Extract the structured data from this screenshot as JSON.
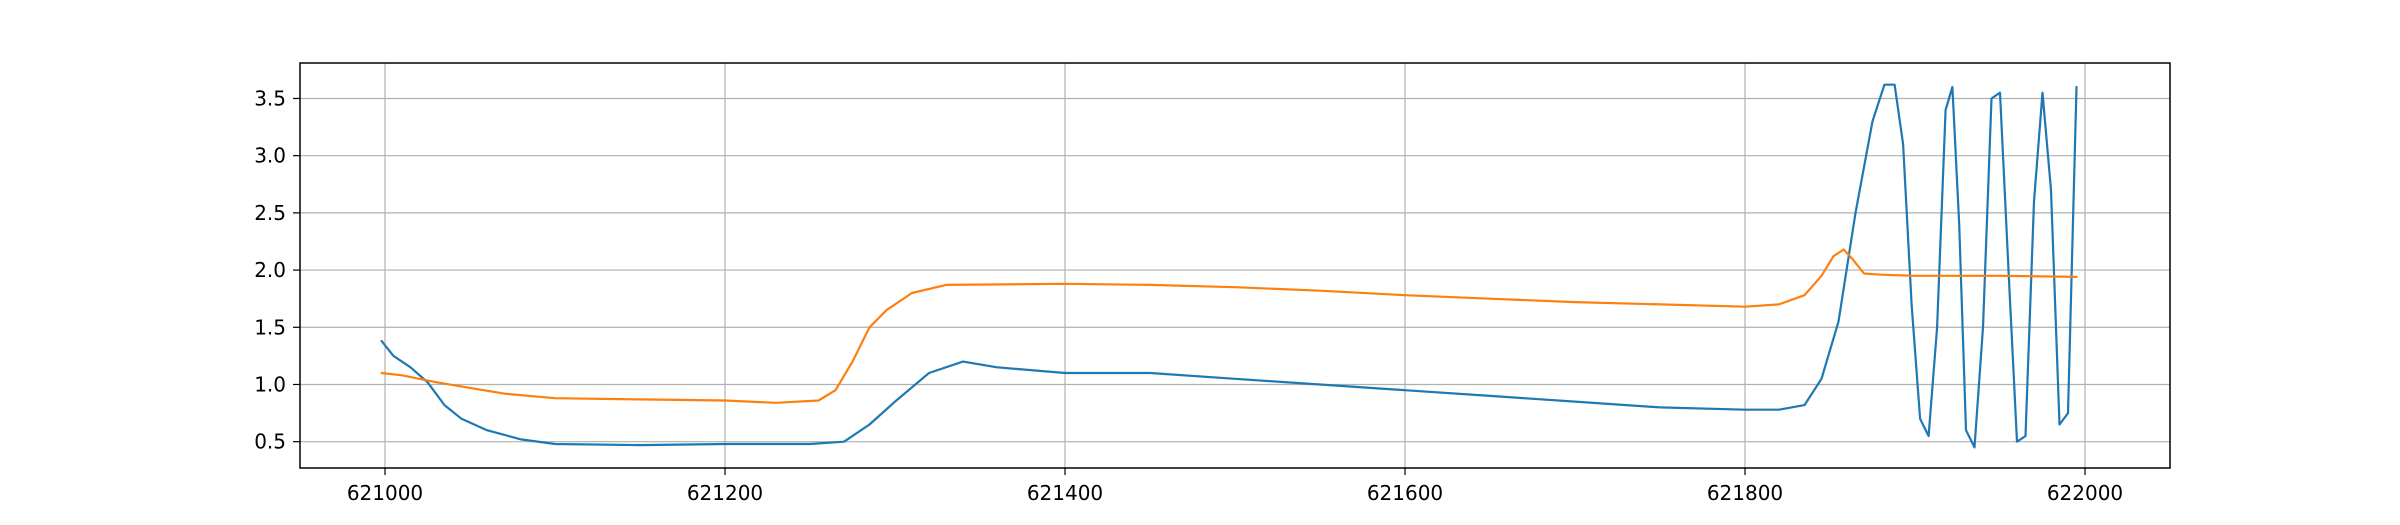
{
  "chart_data": {
    "type": "line",
    "title": "",
    "xlabel": "",
    "ylabel": "",
    "xlim": [
      620950,
      622050
    ],
    "ylim": [
      0.27,
      3.81
    ],
    "grid": true,
    "x_ticks": [
      621000,
      621200,
      621400,
      621600,
      621800,
      622000
    ],
    "y_ticks": [
      0.5,
      1.0,
      1.5,
      2.0,
      2.5,
      3.0,
      3.5
    ],
    "x_tick_labels": [
      "621000",
      "621200",
      "621400",
      "621600",
      "621800",
      "622000"
    ],
    "y_tick_labels": [
      "0.5",
      "1.0",
      "1.5",
      "2.0",
      "2.5",
      "3.0",
      "3.5"
    ],
    "series": [
      {
        "color": "#1f77b4",
        "x": [
          620998,
          621005,
          621015,
          621025,
          621035,
          621045,
          621060,
          621080,
          621100,
          621150,
          621200,
          621250,
          621270,
          621285,
          621300,
          621320,
          621340,
          621360,
          621400,
          621450,
          621500,
          621550,
          621600,
          621650,
          621700,
          621750,
          621800,
          621820,
          621835,
          621845,
          621855,
          621865,
          621875,
          621882,
          621888,
          621893,
          621898,
          621903,
          621908,
          621913,
          621918,
          621922,
          621926,
          621930,
          621935,
          621940,
          621945,
          621950,
          621955,
          621960,
          621965,
          621970,
          621975,
          621980,
          621985,
          621990,
          621995
        ],
        "y": [
          1.38,
          1.25,
          1.15,
          1.02,
          0.82,
          0.7,
          0.6,
          0.52,
          0.48,
          0.47,
          0.48,
          0.48,
          0.5,
          0.65,
          0.85,
          1.1,
          1.2,
          1.15,
          1.1,
          1.1,
          1.05,
          1.0,
          0.95,
          0.9,
          0.85,
          0.8,
          0.78,
          0.78,
          0.82,
          1.05,
          1.55,
          2.5,
          3.3,
          3.62,
          3.62,
          3.1,
          1.7,
          0.7,
          0.55,
          1.5,
          3.4,
          3.6,
          2.4,
          0.6,
          0.45,
          1.5,
          3.5,
          3.55,
          2.0,
          0.5,
          0.55,
          2.6,
          3.55,
          2.7,
          0.65,
          0.75,
          3.6
        ]
      },
      {
        "color": "#ff7f0e",
        "x": [
          620998,
          621010,
          621030,
          621050,
          621070,
          621100,
          621150,
          621200,
          621230,
          621255,
          621265,
          621275,
          621285,
          621295,
          621310,
          621330,
          621400,
          621450,
          621500,
          621550,
          621600,
          621650,
          621700,
          621750,
          621800,
          621820,
          621835,
          621845,
          621852,
          621858,
          621863,
          621870,
          621880,
          621900,
          621950,
          621995
        ],
        "y": [
          1.1,
          1.08,
          1.02,
          0.97,
          0.92,
          0.88,
          0.87,
          0.86,
          0.84,
          0.86,
          0.95,
          1.2,
          1.5,
          1.65,
          1.8,
          1.87,
          1.88,
          1.87,
          1.85,
          1.82,
          1.78,
          1.75,
          1.72,
          1.7,
          1.68,
          1.7,
          1.78,
          1.95,
          2.12,
          2.18,
          2.1,
          1.97,
          1.96,
          1.95,
          1.95,
          1.94
        ]
      }
    ]
  }
}
